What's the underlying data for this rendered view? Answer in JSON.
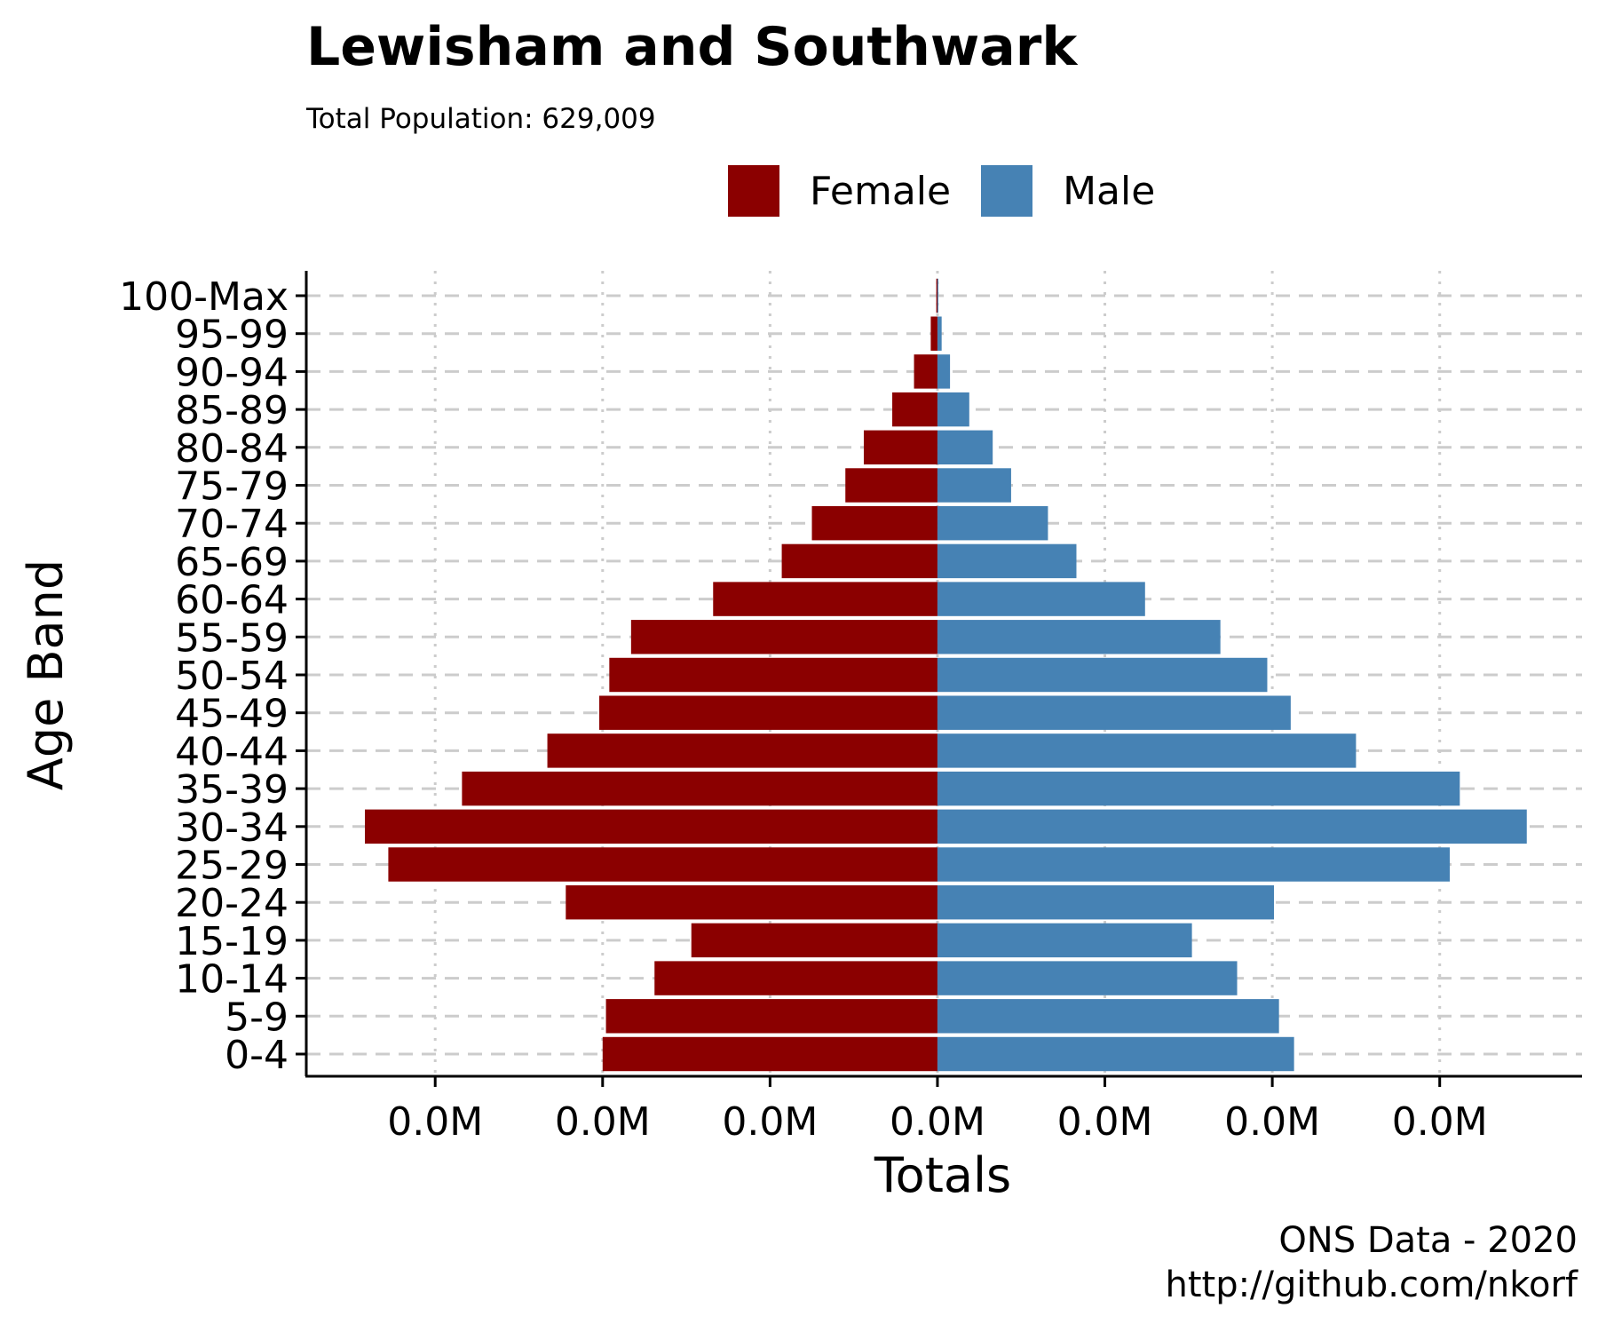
{
  "chart_data": {
    "type": "bar",
    "orientation": "horizontal",
    "title": "Lewisham and Southwark",
    "subtitle": "Total Population:  629,009",
    "caption": [
      "ONS Data - 2020",
      "http://github.com/nkorf"
    ],
    "xlabel": "Totals",
    "ylabel": "Age Band",
    "categories": [
      "0-4",
      "5-9",
      "10-14",
      "15-19",
      "20-24",
      "25-29",
      "30-34",
      "35-39",
      "40-44",
      "45-49",
      "50-54",
      "55-59",
      "60-64",
      "65-69",
      "70-74",
      "75-79",
      "80-84",
      "85-89",
      "90-94",
      "95-99",
      "100-Max"
    ],
    "x_tick_labels": [
      "0.0M",
      "0.0M",
      "0.0M",
      "0.0M",
      "0.0M",
      "0.0M",
      "0.0M"
    ],
    "x_ticks": [
      -30000,
      -20000,
      -10000,
      0,
      10000,
      20000,
      30000
    ],
    "xlim": [
      -37700,
      38500
    ],
    "legend_position": "top",
    "grid": "dashed horizontal, dotted vertical",
    "series": [
      {
        "name": "Female",
        "color": "#8B0000",
        "values": [
          -20000,
          -19800,
          -16900,
          -14700,
          -22200,
          -32800,
          -34200,
          -28400,
          -23300,
          -20200,
          -19600,
          -18300,
          -13400,
          -9300,
          -7500,
          -5500,
          -4400,
          -2700,
          -1400,
          -400,
          -70
        ]
      },
      {
        "name": "Male",
        "color": "#4682B4",
        "values": [
          21300,
          20400,
          17900,
          15200,
          20100,
          30600,
          35200,
          31200,
          25000,
          21100,
          19700,
          16900,
          12400,
          8300,
          6600,
          4400,
          3300,
          1900,
          750,
          250,
          40
        ]
      }
    ]
  }
}
